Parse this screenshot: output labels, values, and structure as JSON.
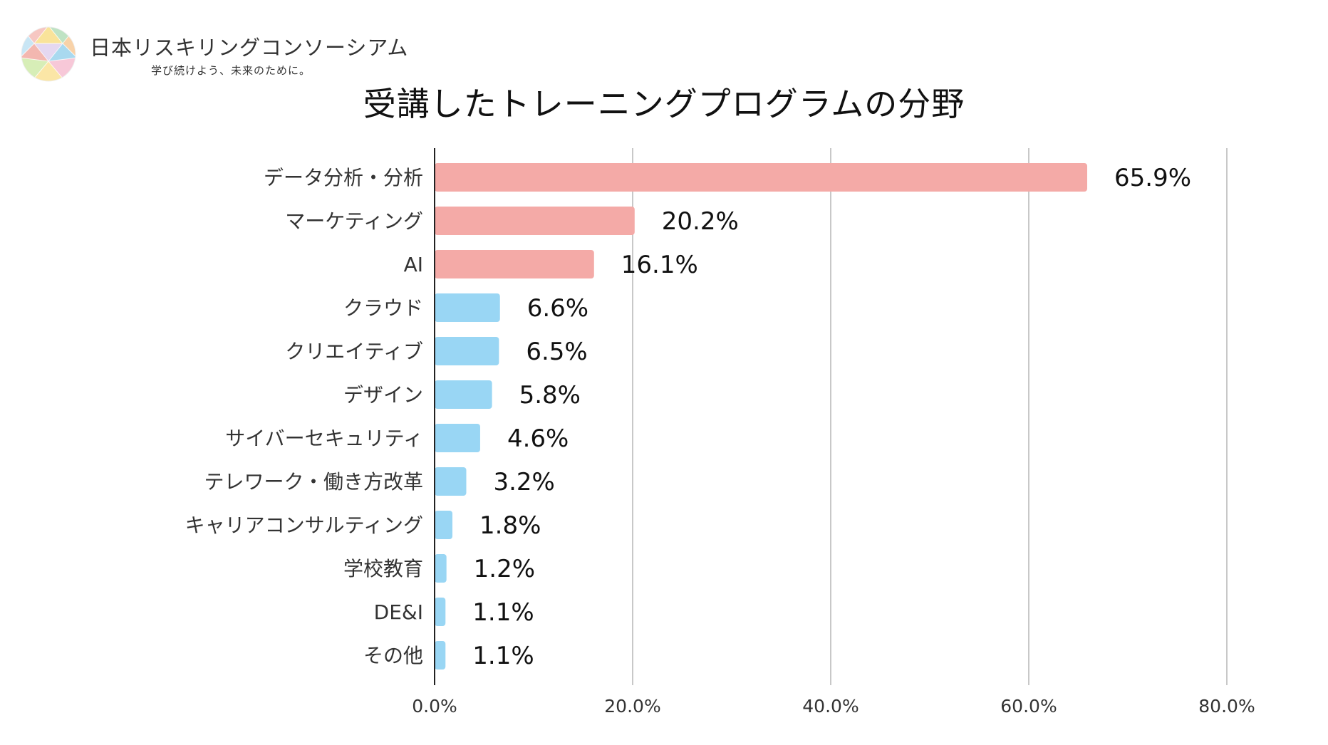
{
  "logo": {
    "name": "日本リスキリングコンソーシアム",
    "tagline": "学び続けよう、未来のために。"
  },
  "colors": {
    "top_bar": "#f4aaa7",
    "other_bar": "#99d6f4",
    "grid": "#c8c8c8",
    "axis": "#222222"
  },
  "chart_data": {
    "type": "bar",
    "orientation": "horizontal",
    "title": "受講したトレーニングプログラムの分野",
    "categories": [
      "データ分析・分析",
      "マーケティング",
      "AI",
      "クラウド",
      "クリエイティブ",
      "デザイン",
      "サイバーセキュリティ",
      "テレワーク・働き方改革",
      "キャリアコンサルティング",
      "学校教育",
      "DE&I",
      "その他"
    ],
    "values": [
      65.9,
      20.2,
      16.1,
      6.6,
      6.5,
      5.8,
      4.6,
      3.2,
      1.8,
      1.2,
      1.1,
      1.1
    ],
    "value_labels": [
      "65.9%",
      "20.2%",
      "16.1%",
      "6.6%",
      "6.5%",
      "5.8%",
      "4.6%",
      "3.2%",
      "1.8%",
      "1.2%",
      "1.1%",
      "1.1%"
    ],
    "highlighted_count": 3,
    "xlim": [
      0,
      80
    ],
    "xticks": [
      0,
      20,
      40,
      60,
      80
    ],
    "xtick_labels": [
      "0.0%",
      "20.0%",
      "40.0%",
      "60.0%",
      "80.0%"
    ],
    "grid": true,
    "legend": false
  }
}
